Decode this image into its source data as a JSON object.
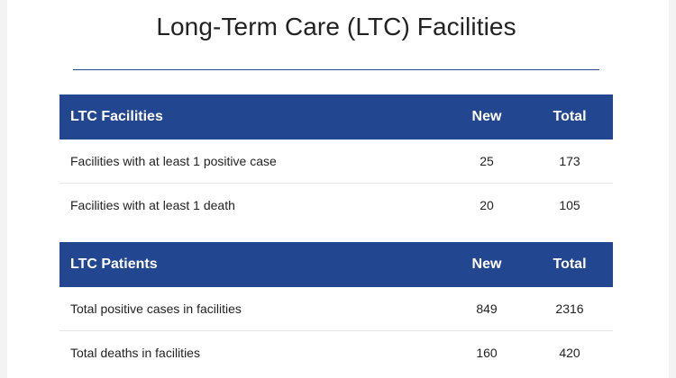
{
  "page": {
    "title": "Long-Term Care (LTC) Facilities"
  },
  "tables": [
    {
      "header": {
        "label": "LTC Facilities",
        "new": "New",
        "total": "Total"
      },
      "rows": [
        {
          "label": "Facilities with at least 1 positive case",
          "new": "25",
          "total": "173"
        },
        {
          "label": "Facilities with at least 1 death",
          "new": "20",
          "total": "105"
        }
      ]
    },
    {
      "header": {
        "label": "LTC Patients",
        "new": "New",
        "total": "Total"
      },
      "rows": [
        {
          "label": "Total positive cases in facilities",
          "new": "849",
          "total": "2316"
        },
        {
          "label": "Total deaths in facilities",
          "new": "160",
          "total": "420"
        }
      ]
    }
  ],
  "colors": {
    "header_background": "#234690",
    "title_rule": "#2a4a8c"
  }
}
